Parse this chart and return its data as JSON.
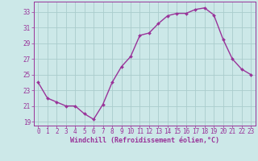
{
  "x": [
    0,
    1,
    2,
    3,
    4,
    5,
    6,
    7,
    8,
    9,
    10,
    11,
    12,
    13,
    14,
    15,
    16,
    17,
    18,
    19,
    20,
    21,
    22,
    23
  ],
  "y": [
    24.0,
    22.0,
    21.5,
    21.0,
    21.0,
    20.0,
    19.3,
    21.2,
    24.0,
    26.0,
    27.3,
    30.0,
    30.3,
    31.5,
    32.5,
    32.8,
    32.8,
    33.3,
    33.5,
    32.6,
    29.5,
    27.0,
    25.7,
    25.0
  ],
  "line_color": "#993399",
  "marker": "D",
  "marker_size": 2.0,
  "bg_color": "#cce8e8",
  "grid_color": "#aacccc",
  "xlabel": "Windchill (Refroidissement éolien,°C)",
  "yticks": [
    19,
    21,
    23,
    25,
    27,
    29,
    31,
    33
  ],
  "xticks": [
    0,
    1,
    2,
    3,
    4,
    5,
    6,
    7,
    8,
    9,
    10,
    11,
    12,
    13,
    14,
    15,
    16,
    17,
    18,
    19,
    20,
    21,
    22,
    23
  ],
  "ylim": [
    18.5,
    34.3
  ],
  "xlim": [
    -0.5,
    23.5
  ],
  "tick_fontsize": 5.5,
  "xlabel_fontsize": 6.0,
  "axis_color": "#993399",
  "line_width": 1.0
}
